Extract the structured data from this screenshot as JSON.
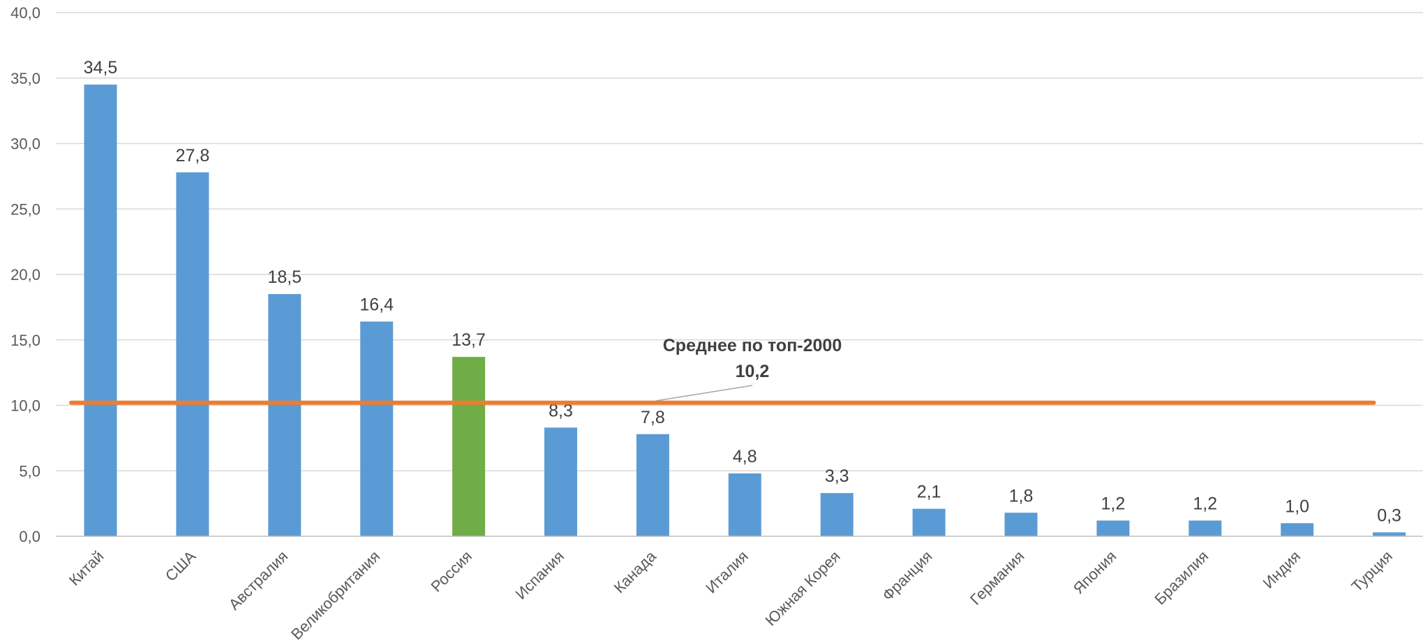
{
  "chart_data": {
    "type": "bar",
    "categories": [
      "Китай",
      "США",
      "Австралия",
      "Великобритания",
      "Россия",
      "Испания",
      "Канада",
      "Италия",
      "Южная Корея",
      "Франция",
      "Германия",
      "Япония",
      "Бразилия",
      "Индия",
      "Турция"
    ],
    "series": [
      {
        "values": [
          34.5,
          27.8,
          18.5,
          16.4,
          13.7,
          8.3,
          7.8,
          4.8,
          3.3,
          2.1,
          1.8,
          1.2,
          1.2,
          1.0,
          0.3
        ]
      }
    ],
    "data_labels": [
      "34,5",
      "27,8",
      "18,5",
      "16,4",
      "13,7",
      "8,3",
      "7,8",
      "4,8",
      "3,3",
      "2,1",
      "1,8",
      "1,2",
      "1,2",
      "1,0",
      "0,3"
    ],
    "highlight_category": "Россия",
    "ylim": [
      0,
      40
    ],
    "yticks": [
      0,
      5,
      10,
      15,
      20,
      25,
      30,
      35,
      40
    ],
    "ytick_labels": [
      "0,0",
      "5,0",
      "10,0",
      "15,0",
      "20,0",
      "25,0",
      "30,0",
      "35,0",
      "40,0"
    ],
    "reference_line": {
      "value": 10.2,
      "label": "Среднее по топ-2000",
      "value_label": "10,2"
    },
    "grid": true,
    "legend": "none",
    "title": "",
    "xlabel": "",
    "ylabel": "",
    "colors": {
      "bar": "#5b9bd5",
      "highlight": "#70ad47",
      "reference_line": "#ed7d31",
      "grid": "#d9d9d9"
    }
  }
}
